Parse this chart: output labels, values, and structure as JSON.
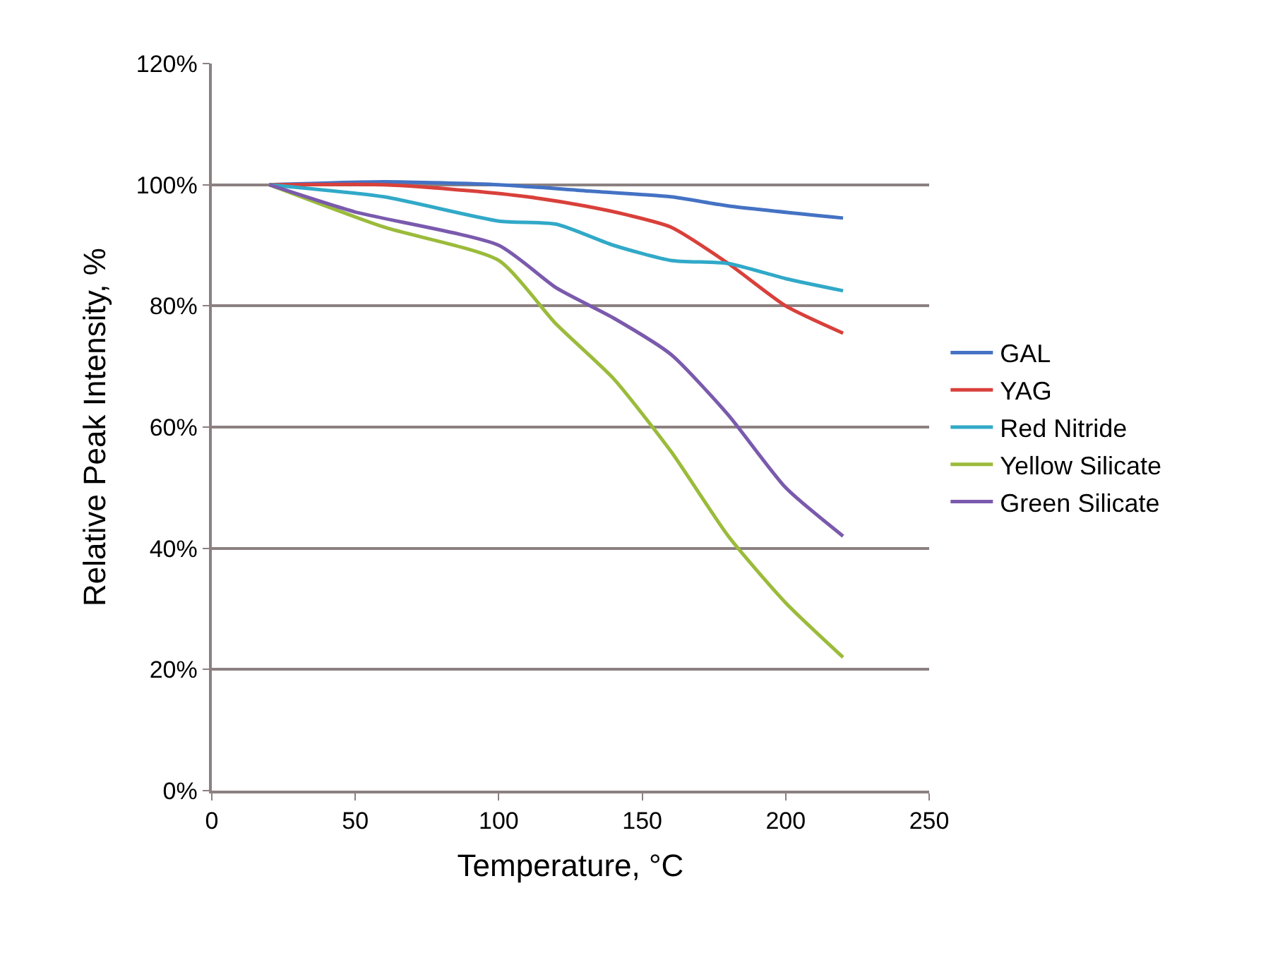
{
  "chart_data": {
    "type": "line",
    "xlabel": "Temperature, °C",
    "ylabel": "Relative Peak Intensity, %",
    "xlim": [
      0,
      250
    ],
    "xticks": [
      0,
      50,
      100,
      150,
      200,
      250
    ],
    "ylim": [
      0,
      1.2
    ],
    "yticks": [
      {
        "value": 0,
        "label": "0%"
      },
      {
        "value": 0.2,
        "label": "20%"
      },
      {
        "value": 0.4,
        "label": "40%"
      },
      {
        "value": 0.6,
        "label": "60%"
      },
      {
        "value": 0.8,
        "label": "80%"
      },
      {
        "value": 1.0,
        "label": "100%"
      },
      {
        "value": 1.2,
        "label": "120%"
      }
    ],
    "grid": "y",
    "legend": "right",
    "marker": "none",
    "line_style": "solid",
    "series": [
      {
        "name": "GAL",
        "color": "#4472c4",
        "x": [
          20,
          60,
          100,
          130,
          160,
          180,
          220
        ],
        "values": [
          1.0,
          1.005,
          1.0,
          0.99,
          0.98,
          0.965,
          0.945
        ]
      },
      {
        "name": "YAG",
        "color": "#d9403b",
        "x": [
          20,
          60,
          90,
          110,
          130,
          145,
          160,
          180,
          200,
          220
        ],
        "values": [
          1.0,
          1.0,
          0.99,
          0.98,
          0.965,
          0.95,
          0.93,
          0.87,
          0.8,
          0.755
        ]
      },
      {
        "name": "Red Nitride",
        "color": "#31a9c8",
        "x": [
          20,
          60,
          100,
          120,
          140,
          160,
          180,
          200,
          220
        ],
        "values": [
          1.0,
          0.98,
          0.94,
          0.935,
          0.9,
          0.875,
          0.87,
          0.845,
          0.825
        ]
      },
      {
        "name": "Yellow Silicate",
        "color": "#9bbb3b",
        "x": [
          20,
          60,
          100,
          120,
          140,
          160,
          180,
          200,
          220
        ],
        "values": [
          1.0,
          0.93,
          0.875,
          0.77,
          0.68,
          0.56,
          0.42,
          0.31,
          0.22
        ]
      },
      {
        "name": "Green Silicate",
        "color": "#7a5aad",
        "x": [
          20,
          50,
          100,
          120,
          140,
          160,
          180,
          200,
          220
        ],
        "values": [
          1.0,
          0.955,
          0.9,
          0.83,
          0.78,
          0.72,
          0.62,
          0.5,
          0.42
        ]
      }
    ]
  }
}
